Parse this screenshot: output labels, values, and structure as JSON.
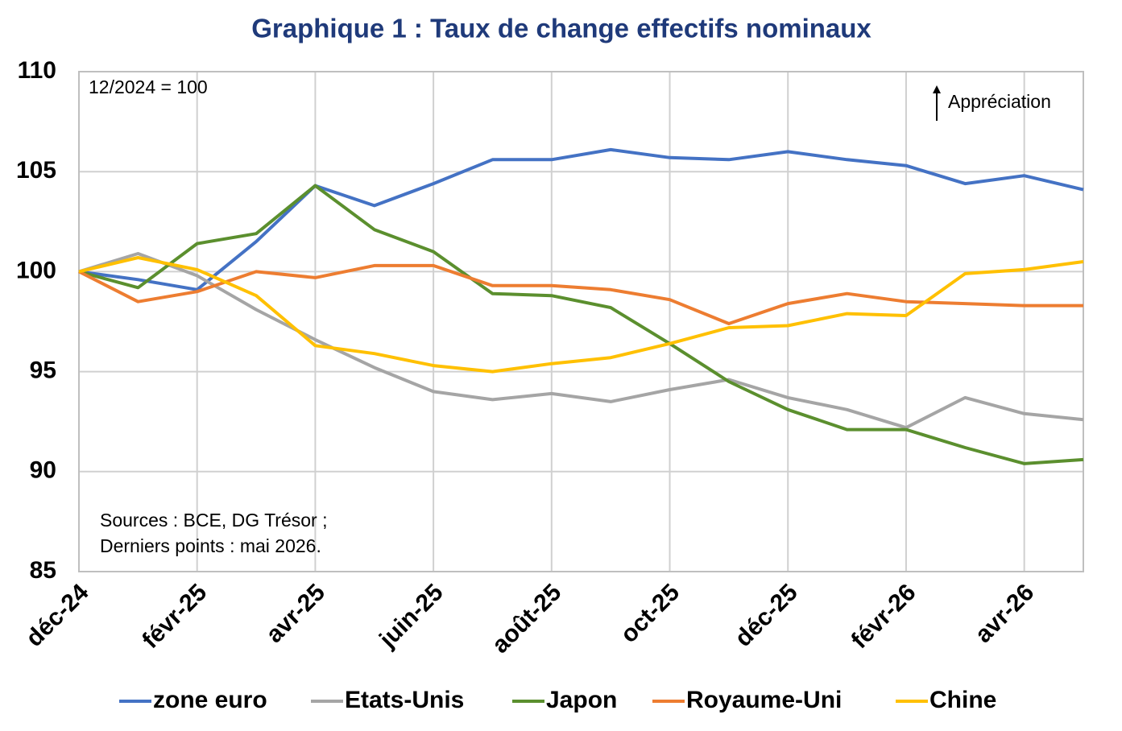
{
  "chart_data": {
    "type": "line",
    "title": "Graphique 1 : Taux de change effectifs nominaux",
    "annotations": [
      "12/2024 = 100",
      "Appréciation"
    ],
    "notes": [
      "Sources : BCE, DG Trésor ;",
      "Derniers points : mai 2026."
    ],
    "categories": [
      "déc-24",
      null,
      "févr-25",
      null,
      "avr-25",
      null,
      "juin-25",
      null,
      "août-25",
      null,
      "oct-25",
      null,
      "déc-25",
      null,
      "févr-26",
      null,
      "avr-26",
      null
    ],
    "series": [
      {
        "name": "zone euro",
        "color": "#4472c4",
        "values": [
          100,
          99.6,
          99.1,
          101.5,
          104.3,
          103.3,
          104.4,
          105.6,
          105.6,
          106.1,
          105.7,
          105.6,
          106.0,
          105.6,
          105.3,
          104.4,
          104.8,
          104.1
        ]
      },
      {
        "name": "Etats-Unis",
        "color": "#a5a5a5",
        "values": [
          100,
          100.9,
          99.8,
          98.1,
          96.6,
          95.2,
          94.0,
          93.6,
          93.9,
          93.5,
          94.1,
          94.6,
          93.7,
          93.1,
          92.2,
          93.7,
          92.9,
          92.6
        ]
      },
      {
        "name": "Japon",
        "color": "#5b8f2e",
        "values": [
          100,
          99.2,
          101.4,
          101.9,
          104.3,
          102.1,
          101.0,
          98.9,
          98.8,
          98.2,
          96.4,
          94.5,
          93.1,
          92.1,
          92.1,
          91.2,
          90.4,
          90.6
        ]
      },
      {
        "name": "Royaume-Uni",
        "color": "#ed7d31",
        "values": [
          100,
          98.5,
          99.0,
          100.0,
          99.7,
          100.3,
          100.3,
          99.3,
          99.3,
          99.1,
          98.6,
          97.4,
          98.4,
          98.9,
          98.5,
          98.4,
          98.3,
          98.3
        ]
      },
      {
        "name": "Chine",
        "color": "#ffc000",
        "values": [
          100,
          100.7,
          100.1,
          98.8,
          96.3,
          95.9,
          95.3,
          95.0,
          95.4,
          95.7,
          96.4,
          97.2,
          97.3,
          97.9,
          97.8,
          99.9,
          100.1,
          100.5
        ]
      }
    ],
    "ylim": [
      85,
      110
    ],
    "yticks": [
      85,
      90,
      95,
      100,
      105,
      110
    ],
    "grid": true
  }
}
